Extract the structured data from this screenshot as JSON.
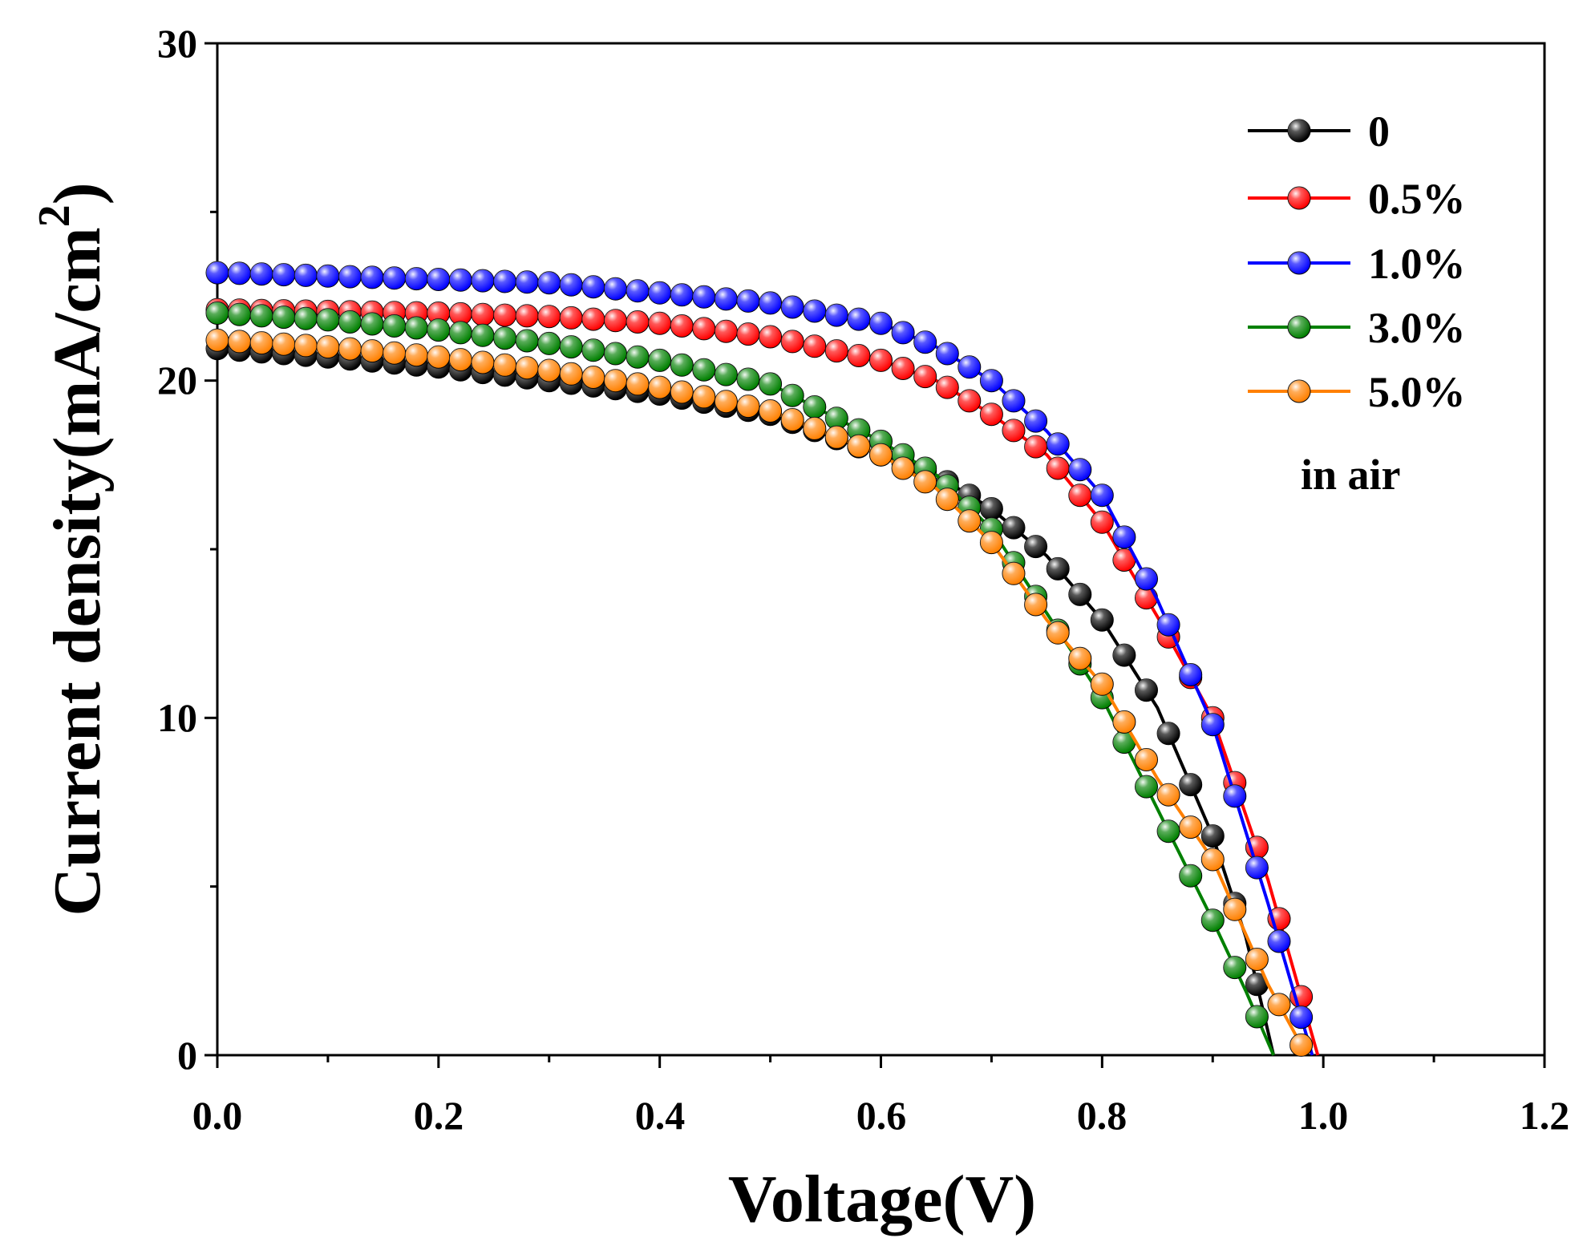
{
  "chart_data": {
    "type": "line",
    "title": "",
    "xlabel": "Voltage(V)",
    "ylabel": "Current density(mA/cm",
    "ylabel_superscript": "2",
    "ylabel_close": ")",
    "xlim": [
      0.0,
      1.2
    ],
    "ylim": [
      0,
      30
    ],
    "xticks": [
      "0.0",
      "0.2",
      "0.4",
      "0.6",
      "0.8",
      "1.0",
      "1.2"
    ],
    "yticks": [
      "0",
      "10",
      "20",
      "30"
    ],
    "grid": false,
    "legend_position": "top-right",
    "annotation": "in air",
    "series": [
      {
        "name": "0",
        "color": "#000000",
        "vjpoints": [
          [
            0.0,
            20.95
          ],
          [
            0.1,
            20.7
          ],
          [
            0.2,
            20.4
          ],
          [
            0.3,
            20.0
          ],
          [
            0.4,
            19.6
          ],
          [
            0.5,
            19.0
          ],
          [
            0.6,
            17.8
          ],
          [
            0.65,
            17.2
          ],
          [
            0.7,
            16.2
          ],
          [
            0.75,
            14.8
          ],
          [
            0.8,
            12.9
          ],
          [
            0.85,
            10.3
          ],
          [
            0.9,
            6.5
          ],
          [
            0.93,
            3.5
          ],
          [
            0.955,
            0.0
          ]
        ],
        "vmax": 0.955
      },
      {
        "name": "0.5%",
        "color": "#ff0000",
        "vjpoints": [
          [
            0.0,
            22.1
          ],
          [
            0.1,
            22.05
          ],
          [
            0.2,
            22.0
          ],
          [
            0.3,
            21.9
          ],
          [
            0.4,
            21.7
          ],
          [
            0.5,
            21.3
          ],
          [
            0.6,
            20.6
          ],
          [
            0.65,
            20.0
          ],
          [
            0.7,
            19.0
          ],
          [
            0.75,
            17.8
          ],
          [
            0.8,
            15.8
          ],
          [
            0.85,
            13.0
          ],
          [
            0.9,
            10.0
          ],
          [
            0.95,
            5.2
          ],
          [
            0.995,
            0.0
          ]
        ],
        "vmax": 0.995
      },
      {
        "name": "1.0%",
        "color": "#0000ff",
        "vjpoints": [
          [
            0.0,
            23.2
          ],
          [
            0.1,
            23.1
          ],
          [
            0.2,
            23.0
          ],
          [
            0.3,
            22.9
          ],
          [
            0.4,
            22.6
          ],
          [
            0.5,
            22.3
          ],
          [
            0.6,
            21.7
          ],
          [
            0.65,
            21.0
          ],
          [
            0.7,
            20.0
          ],
          [
            0.75,
            18.5
          ],
          [
            0.8,
            16.6
          ],
          [
            0.85,
            13.5
          ],
          [
            0.9,
            9.8
          ],
          [
            0.95,
            4.5
          ],
          [
            0.99,
            0.0
          ]
        ],
        "vmax": 0.99
      },
      {
        "name": "3.0%",
        "color": "#008000",
        "vjpoints": [
          [
            0.0,
            22.0
          ],
          [
            0.1,
            21.8
          ],
          [
            0.2,
            21.5
          ],
          [
            0.3,
            21.1
          ],
          [
            0.4,
            20.6
          ],
          [
            0.5,
            19.9
          ],
          [
            0.6,
            18.2
          ],
          [
            0.65,
            17.2
          ],
          [
            0.7,
            15.6
          ],
          [
            0.75,
            13.1
          ],
          [
            0.8,
            10.6
          ],
          [
            0.85,
            7.3
          ],
          [
            0.9,
            4.0
          ],
          [
            0.93,
            1.9
          ],
          [
            0.955,
            0.0
          ]
        ],
        "vmax": 0.955
      },
      {
        "name": "5.0%",
        "color": "#ff8000",
        "vjpoints": [
          [
            0.0,
            21.2
          ],
          [
            0.1,
            21.0
          ],
          [
            0.2,
            20.7
          ],
          [
            0.3,
            20.3
          ],
          [
            0.4,
            19.8
          ],
          [
            0.5,
            19.1
          ],
          [
            0.6,
            17.8
          ],
          [
            0.65,
            16.8
          ],
          [
            0.7,
            15.2
          ],
          [
            0.75,
            12.9
          ],
          [
            0.8,
            11.0
          ],
          [
            0.85,
            8.2
          ],
          [
            0.9,
            5.8
          ],
          [
            0.95,
            2.1
          ],
          [
            0.985,
            0.0
          ]
        ],
        "vmax": 0.985
      }
    ]
  }
}
